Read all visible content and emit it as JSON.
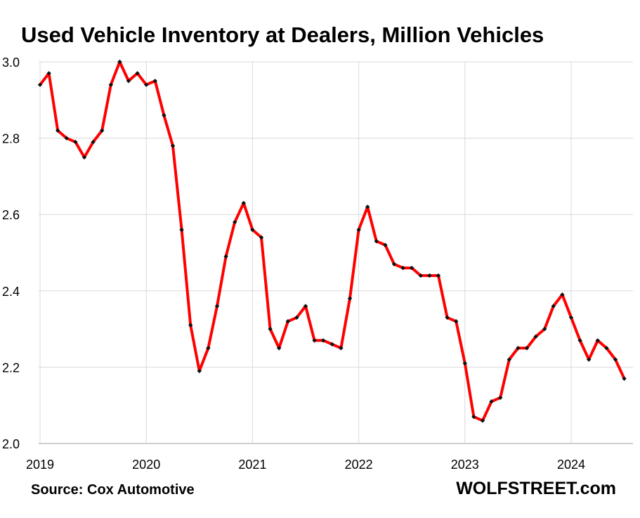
{
  "chart_data": {
    "type": "line",
    "title": "Used Vehicle Inventory at Dealers, Million Vehicles",
    "xlabel": "",
    "ylabel": "",
    "source": "Source: Cox Automotive",
    "brand": "WOLFSTREET.com",
    "ylim": [
      2.0,
      3.0
    ],
    "y_ticks": [
      "2.0",
      "2.2",
      "2.4",
      "2.6",
      "2.8",
      "3.0"
    ],
    "x_ticks": [
      "2019",
      "2020",
      "2021",
      "2022",
      "2023",
      "2024"
    ],
    "grid": true,
    "colors": {
      "line": "#ff0000",
      "marker": "#111111",
      "grid": "#d9d9d9",
      "axis": "#bfbfbf"
    },
    "series": [
      {
        "name": "Used Vehicle Inventory",
        "values": [
          2.94,
          2.97,
          2.82,
          2.8,
          2.79,
          2.75,
          2.79,
          2.82,
          2.94,
          3.0,
          2.95,
          2.97,
          2.94,
          2.95,
          2.86,
          2.78,
          2.56,
          2.31,
          2.19,
          2.25,
          2.36,
          2.49,
          2.58,
          2.63,
          2.56,
          2.54,
          2.3,
          2.25,
          2.32,
          2.33,
          2.36,
          2.27,
          2.27,
          2.26,
          2.25,
          2.38,
          2.56,
          2.62,
          2.53,
          2.52,
          2.47,
          2.46,
          2.46,
          2.44,
          2.44,
          2.44,
          2.33,
          2.32,
          2.21,
          2.07,
          2.06,
          2.11,
          2.12,
          2.22,
          2.25,
          2.25,
          2.28,
          2.3,
          2.36,
          2.39,
          2.33,
          2.27,
          2.22,
          2.27,
          2.25,
          2.22,
          2.17
        ]
      }
    ]
  }
}
